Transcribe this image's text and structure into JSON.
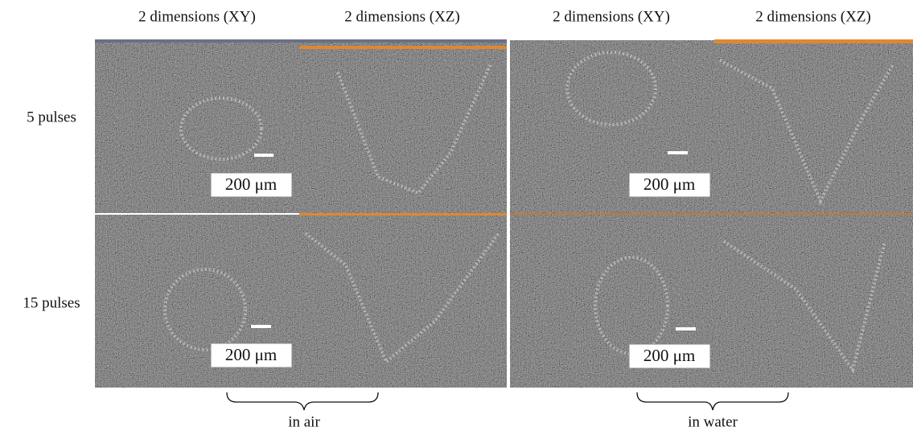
{
  "column_headers": [
    "2 dimensions (XY)",
    "2 dimensions (XZ)",
    "2 dimensions (XY)",
    "2 dimensions (XZ)"
  ],
  "row_labels": [
    "5 pulses",
    "15 pulses"
  ],
  "scale_labels": [
    "200 μm",
    "200 μm",
    "200 μm",
    "200 μm"
  ],
  "group_labels": [
    "in air",
    "in water"
  ]
}
